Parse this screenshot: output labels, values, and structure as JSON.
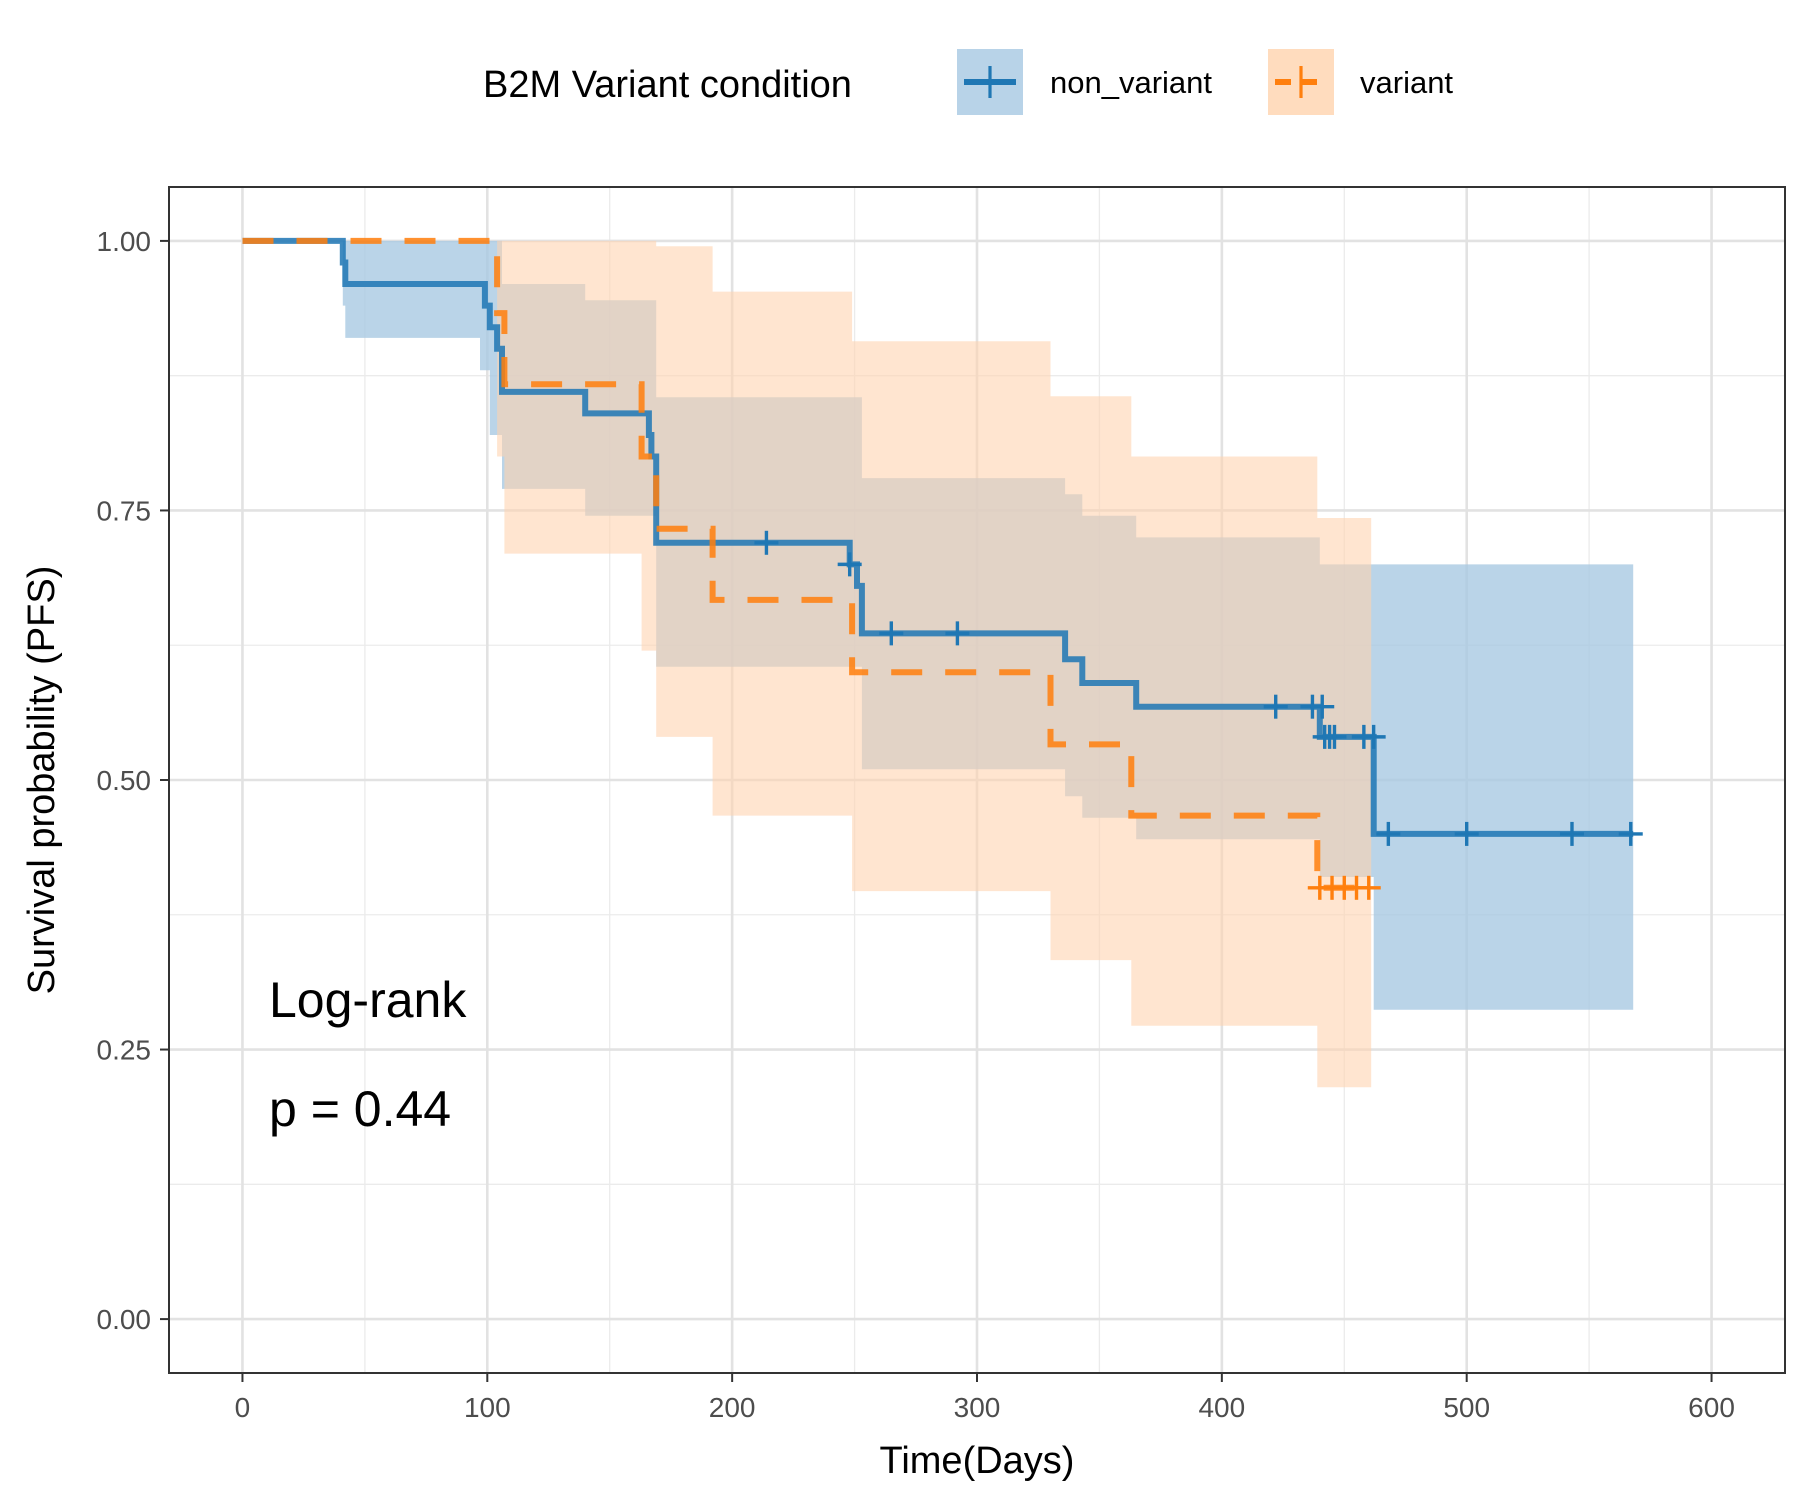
{
  "chart_data": {
    "type": "line",
    "xlabel": "Time(Days)",
    "ylabel": "Survival probability (PFS)",
    "xlim": [
      -30,
      630
    ],
    "ylim": [
      -0.05,
      1.05
    ],
    "x_ticks": [
      0,
      100,
      200,
      300,
      400,
      500,
      600
    ],
    "y_ticks": [
      0,
      0.25,
      0.5,
      0.75,
      1
    ],
    "x_tick_labels": [
      "0",
      "100",
      "200",
      "300",
      "400",
      "500",
      "600"
    ],
    "y_tick_labels": [
      "0.00",
      "0.25",
      "0.50",
      "0.75",
      "1.00"
    ],
    "grid": true,
    "legend": {
      "title": "B2M Variant condition",
      "position": "top",
      "entries": [
        "non_variant",
        "variant"
      ]
    },
    "annotations": [
      "Log-rank",
      "p = 0.44"
    ],
    "series": [
      {
        "name": "non_variant",
        "color": "#1f77b4",
        "fill": "#a6c8e2",
        "line_style": "solid",
        "steps": [
          [
            0,
            1.0
          ],
          [
            41,
            0.98
          ],
          [
            42,
            0.96
          ],
          [
            99,
            0.94
          ],
          [
            101,
            0.92
          ],
          [
            104,
            0.9
          ],
          [
            106,
            0.86
          ],
          [
            140,
            0.84
          ],
          [
            166,
            0.82
          ],
          [
            167,
            0.8
          ],
          [
            169,
            0.72
          ],
          [
            248,
            0.7
          ],
          [
            251,
            0.68
          ],
          [
            253,
            0.636
          ],
          [
            336,
            0.612
          ],
          [
            343,
            0.59
          ],
          [
            365,
            0.568
          ],
          [
            440,
            0.54
          ],
          [
            462,
            0.45
          ],
          [
            568,
            0.45
          ]
        ],
        "ci_steps": [
          [
            0,
            1.0,
            1.0
          ],
          [
            41,
            0.94,
            1.0
          ],
          [
            42,
            0.91,
            1.0
          ],
          [
            97,
            0.88,
            1.0
          ],
          [
            101,
            0.82,
            1.0
          ],
          [
            106,
            0.77,
            0.96
          ],
          [
            140,
            0.745,
            0.945
          ],
          [
            169,
            0.605,
            0.855
          ],
          [
            253,
            0.51,
            0.78
          ],
          [
            336,
            0.485,
            0.765
          ],
          [
            343,
            0.465,
            0.745
          ],
          [
            365,
            0.445,
            0.725
          ],
          [
            440,
            0.41,
            0.7
          ],
          [
            462,
            0.287,
            0.7
          ],
          [
            568,
            0.287,
            0.7
          ]
        ],
        "censor_times": [
          214,
          248,
          265,
          292,
          422,
          437,
          441,
          442,
          444,
          446,
          458,
          462,
          468,
          500,
          543,
          567
        ],
        "censor_values": [
          0.72,
          0.7,
          0.636,
          0.636,
          0.568,
          0.568,
          0.568,
          0.54,
          0.54,
          0.54,
          0.54,
          0.54,
          0.45,
          0.45,
          0.45,
          0.45
        ]
      },
      {
        "name": "variant",
        "color": "#ff7f0e",
        "fill": "#ffd3ae",
        "line_style": "dashed",
        "steps": [
          [
            0,
            1.0
          ],
          [
            104,
            0.933
          ],
          [
            107,
            0.867
          ],
          [
            163,
            0.8
          ],
          [
            169,
            0.733
          ],
          [
            192,
            0.667
          ],
          [
            249,
            0.6
          ],
          [
            330,
            0.533
          ],
          [
            363,
            0.467
          ],
          [
            439,
            0.4
          ],
          [
            461,
            0.4
          ]
        ],
        "ci_steps": [
          [
            0,
            1.0,
            1.0
          ],
          [
            104,
            0.8,
            1.0
          ],
          [
            107,
            0.71,
            1.0
          ],
          [
            163,
            0.62,
            1.0
          ],
          [
            169,
            0.54,
            0.995
          ],
          [
            192,
            0.467,
            0.953
          ],
          [
            249,
            0.397,
            0.907
          ],
          [
            330,
            0.333,
            0.856
          ],
          [
            363,
            0.272,
            0.8
          ],
          [
            439,
            0.215,
            0.743
          ],
          [
            461,
            0.215,
            0.743
          ]
        ],
        "censor_times": [
          440,
          445,
          450,
          455,
          460
        ],
        "censor_values": [
          0.4,
          0.4,
          0.4,
          0.4,
          0.4
        ]
      }
    ]
  }
}
